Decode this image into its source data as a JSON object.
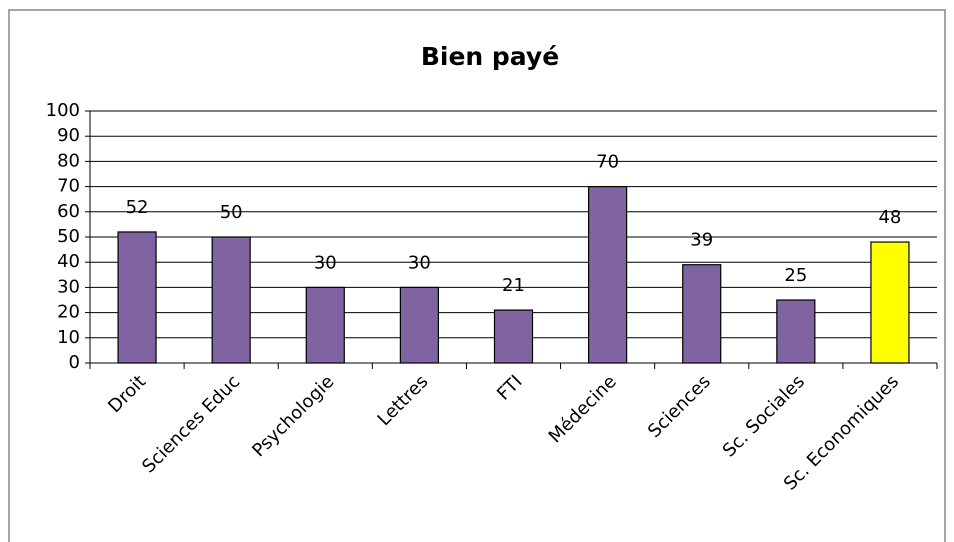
{
  "chart_data": {
    "type": "bar",
    "title": "Bien payé",
    "categories": [
      "Droit",
      "Sciences Educ",
      "Psychologie",
      "Lettres",
      "FTI",
      "Médecine",
      "Sciences",
      "Sc. Sociales",
      "Sc. Economiques"
    ],
    "values": [
      52,
      50,
      30,
      30,
      21,
      70,
      39,
      25,
      48
    ],
    "colors": [
      "#8064a2",
      "#8064a2",
      "#8064a2",
      "#8064a2",
      "#8064a2",
      "#8064a2",
      "#8064a2",
      "#8064a2",
      "#ffff00"
    ],
    "ylim": [
      0,
      100
    ],
    "yticks": [
      0,
      10,
      20,
      30,
      40,
      50,
      60,
      70,
      80,
      90,
      100
    ],
    "grid": true
  }
}
